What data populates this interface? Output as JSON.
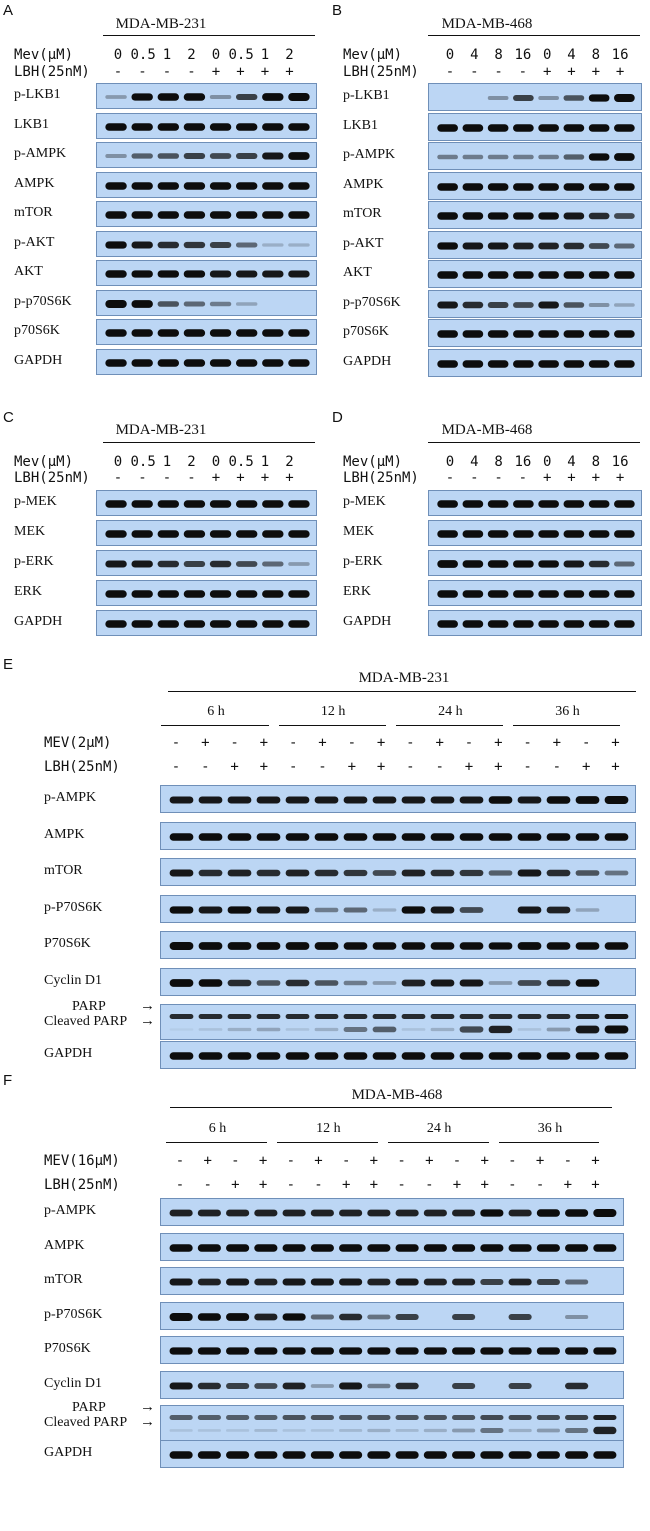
{
  "panels": {
    "A": {
      "letter": "A",
      "title": "MDA-MB-231",
      "treatments": [
        {
          "name": "Mev(µM)",
          "values": [
            "0",
            "0.5",
            "1",
            "2",
            "0",
            "0.5",
            "1",
            "2"
          ]
        },
        {
          "name": "LBH(25nM)",
          "values": [
            "-",
            "-",
            "-",
            "-",
            "+",
            "+",
            "+",
            "+"
          ]
        }
      ],
      "rows": [
        {
          "label": "p-LKB1",
          "bands": [
            0.15,
            0.85,
            0.9,
            0.9,
            0.2,
            0.6,
            0.95,
            1.0
          ]
        },
        {
          "label": "LKB1",
          "bands": [
            0.9,
            0.9,
            0.9,
            0.9,
            0.9,
            0.9,
            0.9,
            0.9
          ]
        },
        {
          "label": "p-AMPK",
          "bands": [
            0.2,
            0.45,
            0.5,
            0.6,
            0.55,
            0.6,
            0.8,
            0.95
          ]
        },
        {
          "label": "AMPK",
          "bands": [
            0.9,
            0.9,
            0.9,
            0.9,
            0.9,
            0.9,
            0.9,
            0.9
          ]
        },
        {
          "label": "mTOR",
          "bands": [
            0.9,
            0.9,
            0.9,
            0.9,
            0.9,
            0.9,
            0.9,
            0.9
          ]
        },
        {
          "label": "p-AKT",
          "bands": [
            0.85,
            0.8,
            0.7,
            0.65,
            0.6,
            0.4,
            0.05,
            0.05
          ]
        },
        {
          "label": "AKT",
          "bands": [
            0.9,
            0.85,
            0.85,
            0.85,
            0.8,
            0.8,
            0.8,
            0.8
          ]
        },
        {
          "label": "p-p70S6K",
          "bands": [
            1.0,
            0.95,
            0.5,
            0.4,
            0.3,
            0.1,
            0.0,
            0.0
          ]
        },
        {
          "label": "p70S6K",
          "bands": [
            0.9,
            0.9,
            0.9,
            0.9,
            0.9,
            0.9,
            0.9,
            0.9
          ]
        },
        {
          "label": "GAPDH",
          "bands": [
            0.9,
            0.9,
            0.9,
            0.9,
            0.9,
            0.9,
            0.9,
            0.9
          ]
        }
      ]
    },
    "B": {
      "letter": "B",
      "title": "MDA-MB-468",
      "treatments": [
        {
          "name": "Mev(µM)",
          "values": [
            "0",
            "4",
            "8",
            "16",
            "0",
            "4",
            "8",
            "16"
          ]
        },
        {
          "name": "LBH(25nM)",
          "values": [
            "-",
            "-",
            "-",
            "-",
            "+",
            "+",
            "+",
            "+"
          ]
        }
      ],
      "rows": [
        {
          "label": "p-LKB1",
          "bands": [
            0.0,
            0.0,
            0.2,
            0.6,
            0.2,
            0.5,
            0.85,
            1.0
          ]
        },
        {
          "label": "LKB1",
          "bands": [
            0.9,
            0.9,
            0.9,
            0.9,
            0.9,
            0.9,
            0.9,
            0.9
          ]
        },
        {
          "label": "p-AMPK",
          "bands": [
            0.3,
            0.3,
            0.3,
            0.3,
            0.3,
            0.45,
            0.85,
            0.95
          ]
        },
        {
          "label": "AMPK",
          "bands": [
            0.9,
            0.9,
            0.9,
            0.9,
            0.9,
            0.9,
            0.9,
            0.9
          ]
        },
        {
          "label": "mTOR",
          "bands": [
            0.9,
            0.9,
            0.85,
            0.85,
            0.85,
            0.8,
            0.7,
            0.55
          ]
        },
        {
          "label": "p-AKT",
          "bands": [
            0.85,
            0.8,
            0.8,
            0.75,
            0.75,
            0.7,
            0.55,
            0.4
          ]
        },
        {
          "label": "AKT",
          "bands": [
            0.9,
            0.9,
            0.9,
            0.9,
            0.9,
            0.9,
            0.9,
            0.9
          ]
        },
        {
          "label": "p-p70S6K",
          "bands": [
            0.8,
            0.7,
            0.6,
            0.55,
            0.8,
            0.5,
            0.2,
            0.1
          ]
        },
        {
          "label": "p70S6K",
          "bands": [
            0.9,
            0.9,
            0.9,
            0.9,
            0.9,
            0.9,
            0.9,
            0.9
          ]
        },
        {
          "label": "GAPDH",
          "bands": [
            0.9,
            0.9,
            0.9,
            0.9,
            0.9,
            0.9,
            0.9,
            0.9
          ]
        }
      ]
    },
    "C": {
      "letter": "C",
      "title": "MDA-MB-231",
      "treatments": [
        {
          "name": "Mev(µM)",
          "values": [
            "0",
            "0.5",
            "1",
            "2",
            "0",
            "0.5",
            "1",
            "2"
          ]
        },
        {
          "name": "LBH(25nM)",
          "values": [
            "-",
            "-",
            "-",
            "-",
            "+",
            "+",
            "+",
            "+"
          ]
        }
      ],
      "rows": [
        {
          "label": "p-MEK",
          "bands": [
            0.9,
            0.9,
            0.9,
            0.9,
            0.9,
            0.9,
            0.9,
            0.9
          ]
        },
        {
          "label": "MEK",
          "bands": [
            0.9,
            0.9,
            0.9,
            0.9,
            0.9,
            0.9,
            0.9,
            0.9
          ]
        },
        {
          "label": "p-ERK",
          "bands": [
            0.8,
            0.8,
            0.7,
            0.6,
            0.7,
            0.55,
            0.4,
            0.15
          ]
        },
        {
          "label": "ERK",
          "bands": [
            0.9,
            0.9,
            0.9,
            0.9,
            0.9,
            0.9,
            0.9,
            0.9
          ]
        },
        {
          "label": "GAPDH",
          "bands": [
            0.9,
            0.9,
            0.9,
            0.9,
            0.9,
            0.9,
            0.9,
            0.9
          ]
        }
      ]
    },
    "D": {
      "letter": "D",
      "title": "MDA-MB-468",
      "treatments": [
        {
          "name": "Mev(µM)",
          "values": [
            "0",
            "4",
            "8",
            "16",
            "0",
            "4",
            "8",
            "16"
          ]
        },
        {
          "name": "LBH(25nM)",
          "values": [
            "-",
            "-",
            "-",
            "-",
            "+",
            "+",
            "+",
            "+"
          ]
        }
      ],
      "rows": [
        {
          "label": "p-MEK",
          "bands": [
            0.9,
            0.9,
            0.9,
            0.9,
            0.9,
            0.9,
            0.9,
            0.9
          ]
        },
        {
          "label": "MEK",
          "bands": [
            0.9,
            0.9,
            0.9,
            0.9,
            0.9,
            0.9,
            0.9,
            0.9
          ]
        },
        {
          "label": "p-ERK",
          "bands": [
            0.95,
            0.9,
            0.9,
            0.85,
            0.85,
            0.8,
            0.7,
            0.4
          ]
        },
        {
          "label": "ERK",
          "bands": [
            0.9,
            0.9,
            0.9,
            0.9,
            0.9,
            0.9,
            0.9,
            0.9
          ]
        },
        {
          "label": "GAPDH",
          "bands": [
            0.9,
            0.9,
            0.9,
            0.9,
            0.9,
            0.9,
            0.9,
            0.9
          ]
        }
      ]
    },
    "E": {
      "letter": "E",
      "title": "MDA-MB-231",
      "timepoints": [
        "6 h",
        "12 h",
        "24 h",
        "36 h"
      ],
      "treatments": [
        {
          "name": "MEV(2µM)",
          "values": [
            "-",
            "+",
            "-",
            "+",
            "-",
            "+",
            "-",
            "+",
            "-",
            "+",
            "-",
            "+",
            "-",
            "+",
            "-",
            "+"
          ]
        },
        {
          "name": "LBH(25nM)",
          "values": [
            "-",
            "-",
            "+",
            "+",
            "-",
            "-",
            "+",
            "+",
            "-",
            "-",
            "+",
            "+",
            "-",
            "-",
            "+",
            "+"
          ]
        }
      ],
      "rows": [
        {
          "label": "p-AMPK",
          "bands": [
            0.8,
            0.8,
            0.8,
            0.8,
            0.8,
            0.8,
            0.8,
            0.8,
            0.8,
            0.8,
            0.8,
            0.9,
            0.8,
            0.9,
            0.95,
            1.0
          ]
        },
        {
          "label": "AMPK",
          "bands": [
            0.9,
            0.9,
            0.9,
            0.9,
            0.9,
            0.9,
            0.9,
            0.9,
            0.9,
            0.9,
            0.9,
            0.9,
            0.9,
            0.9,
            0.9,
            0.9
          ]
        },
        {
          "label": "mTOR",
          "bands": [
            0.8,
            0.7,
            0.75,
            0.7,
            0.75,
            0.7,
            0.65,
            0.55,
            0.75,
            0.7,
            0.65,
            0.45,
            0.8,
            0.7,
            0.5,
            0.35
          ]
        },
        {
          "label": "p-P70S6K",
          "bands": [
            0.85,
            0.8,
            0.85,
            0.8,
            0.8,
            0.3,
            0.4,
            0.05,
            0.85,
            0.8,
            0.55,
            0.0,
            0.8,
            0.75,
            0.1,
            0.0
          ]
        },
        {
          "label": "P70S6K",
          "bands": [
            1.0,
            0.95,
            0.95,
            0.95,
            0.95,
            0.95,
            0.9,
            0.9,
            0.9,
            0.9,
            0.9,
            0.85,
            0.95,
            0.9,
            0.9,
            0.9
          ]
        },
        {
          "label": "Cyclin D1",
          "bands": [
            0.95,
            0.9,
            0.7,
            0.5,
            0.7,
            0.5,
            0.3,
            0.15,
            0.75,
            0.8,
            0.8,
            0.15,
            0.55,
            0.7,
            0.9,
            0.0
          ]
        },
        {
          "label": "PARP",
          "bands": [
            0.85,
            0.85,
            0.85,
            0.85,
            0.85,
            0.85,
            0.85,
            0.85,
            0.85,
            0.85,
            0.85,
            0.85,
            0.85,
            0.85,
            0.9,
            0.95
          ]
        },
        {
          "label": "GAPDH",
          "bands": [
            0.9,
            0.9,
            0.9,
            0.9,
            0.9,
            0.9,
            0.9,
            0.9,
            0.9,
            0.9,
            0.9,
            0.9,
            0.9,
            0.9,
            0.9,
            0.9
          ]
        }
      ],
      "parp_labels": [
        "PARP",
        "Cleaved PARP"
      ]
    },
    "F": {
      "letter": "F",
      "title": "MDA-MB-468",
      "timepoints": [
        "6 h",
        "12 h",
        "24 h",
        "36 h"
      ],
      "treatments": [
        {
          "name": "MEV(16µM)",
          "values": [
            "-",
            "+",
            "-",
            "+",
            "-",
            "+",
            "-",
            "+",
            "-",
            "+",
            "-",
            "+",
            "-",
            "+",
            "-",
            "+"
          ]
        },
        {
          "name": "LBH(25nM)",
          "values": [
            "-",
            "-",
            "+",
            "+",
            "-",
            "-",
            "+",
            "+",
            "-",
            "-",
            "+",
            "+",
            "-",
            "-",
            "+",
            "+"
          ]
        }
      ],
      "rows": [
        {
          "label": "p-AMPK",
          "bands": [
            0.75,
            0.75,
            0.75,
            0.75,
            0.75,
            0.75,
            0.75,
            0.75,
            0.75,
            0.75,
            0.75,
            0.85,
            0.75,
            0.9,
            0.9,
            1.0
          ]
        },
        {
          "label": "AMPK",
          "bands": [
            0.9,
            0.9,
            0.9,
            0.9,
            0.9,
            0.9,
            0.9,
            0.9,
            0.9,
            0.9,
            0.9,
            0.9,
            0.9,
            0.9,
            0.9,
            0.9
          ]
        },
        {
          "label": "mTOR",
          "bands": [
            0.8,
            0.75,
            0.8,
            0.75,
            0.8,
            0.8,
            0.8,
            0.75,
            0.8,
            0.75,
            0.75,
            0.6,
            0.75,
            0.6,
            0.4,
            0.0
          ]
        },
        {
          "label": "p-P70S6K",
          "bands": [
            1.0,
            0.9,
            0.95,
            0.75,
            0.85,
            0.4,
            0.7,
            0.35,
            0.6,
            0.0,
            0.6,
            0.0,
            0.6,
            0.0,
            0.2,
            0.0
          ]
        },
        {
          "label": "P70S6K",
          "bands": [
            0.85,
            0.85,
            0.85,
            0.85,
            0.85,
            0.85,
            0.85,
            0.85,
            0.85,
            0.85,
            0.85,
            0.85,
            0.85,
            0.85,
            0.85,
            0.85
          ]
        },
        {
          "label": "Cyclin D1",
          "bands": [
            0.8,
            0.7,
            0.6,
            0.55,
            0.75,
            0.15,
            0.8,
            0.3,
            0.7,
            0.0,
            0.6,
            0.0,
            0.6,
            0.0,
            0.7,
            0.0
          ]
        },
        {
          "label": "PARP",
          "bands": [
            0.6,
            0.6,
            0.6,
            0.6,
            0.65,
            0.65,
            0.65,
            0.65,
            0.65,
            0.65,
            0.65,
            0.7,
            0.7,
            0.7,
            0.75,
            0.9
          ]
        },
        {
          "label": "GAPDH",
          "bands": [
            0.9,
            0.9,
            0.9,
            0.9,
            0.9,
            0.9,
            0.9,
            0.9,
            0.9,
            0.9,
            0.9,
            0.9,
            0.9,
            0.9,
            0.9,
            0.9
          ]
        }
      ],
      "parp_labels": [
        "PARP",
        "Cleaved PARP"
      ]
    }
  },
  "colors": {
    "membrane": "#bcd6f4",
    "membrane_border": "#6f8fb8",
    "band": "#0d0d0d"
  }
}
